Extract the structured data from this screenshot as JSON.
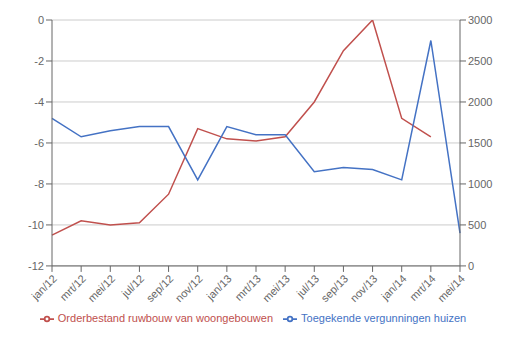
{
  "chart_data": {
    "type": "line",
    "categories": [
      "jan/12",
      "mrt/12",
      "mei/12",
      "jul/12",
      "sep/12",
      "nov/12",
      "jan/13",
      "mrt/13",
      "mei/13",
      "jul/13",
      "sep/13",
      "nov/13",
      "jan/14",
      "mrt/14",
      "mei/14"
    ],
    "series": [
      {
        "name": "Orderbestand ruwbouw van woongebouwen",
        "color": "#c0504d",
        "values": [
          -10.5,
          -9.8,
          -10.0,
          -9.9,
          -8.5,
          -5.3,
          -5.8,
          -5.9,
          -5.7,
          -4.0,
          -1.5,
          0.0,
          -4.8,
          -5.7,
          null
        ]
      },
      {
        "name": "Toegekende vergunningen huizen",
        "color": "#4472c4",
        "axis": "y2",
        "values": [
          1800,
          1575,
          1650,
          1700,
          1700,
          1050,
          1700,
          1600,
          1600,
          1150,
          1200,
          1175,
          1050,
          2750,
          400
        ]
      }
    ],
    "ylim": [
      -12,
      0
    ],
    "yticks": [
      0,
      -2,
      -4,
      -6,
      -8,
      -10,
      -12
    ],
    "y2lim": [
      0,
      3000
    ],
    "y2ticks": [
      0,
      500,
      1000,
      1500,
      2000,
      2500,
      3000
    ],
    "grid": true,
    "legend": "bottom"
  }
}
